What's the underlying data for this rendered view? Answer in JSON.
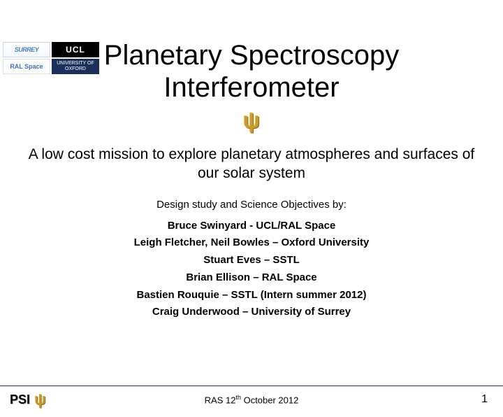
{
  "logos": {
    "surrey": "SURREY",
    "ucl": "UCL",
    "ral": "RAL Space",
    "oxford": "UNIVERSITY OF OXFORD"
  },
  "title_line1": "Planetary Spectroscopy",
  "title_line2": "Interferometer",
  "psi_glyph": "ψ",
  "subtitle": "A low cost mission to explore planetary atmospheres and surfaces of our solar system",
  "credits_lead": "Design study and Science Objectives by:",
  "credits": [
    "Bruce Swinyard - UCL/RAL Space",
    "Leigh Fletcher, Neil Bowles – Oxford University",
    "Stuart Eves – SSTL",
    "Brian Ellison – RAL Space",
    "Bastien Rouquie – SSTL (Intern summer 2012)",
    "Craig Underwood – University of Surrey"
  ],
  "footer": {
    "psi_label": "PSI",
    "date_prefix": "RAS 12",
    "date_sup": "th",
    "date_suffix": " October 2012",
    "page": "1"
  },
  "colors": {
    "psi_gold": "#c89b2a",
    "footer_rule": "#1a2f5a",
    "oxford_bg": "#1a2f5a",
    "surrey_text": "#4a7dbf"
  },
  "typography": {
    "title_size": 40,
    "subtitle_size": 21,
    "credits_size": 15,
    "footer_size": 13
  }
}
